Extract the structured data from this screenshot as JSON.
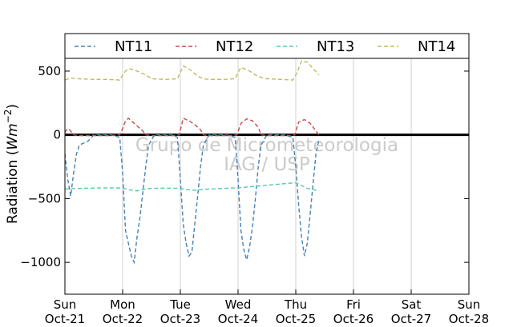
{
  "chart_data": {
    "type": "line",
    "ylabel_text": "Radiation (",
    "ylabel_unit": "Wm",
    "ylabel_exp": "−2",
    "ylabel_close": ")",
    "ylim": [
      -1250,
      600
    ],
    "yticks": [
      500,
      0,
      -500,
      -1000
    ],
    "ytick_labels": [
      "500",
      "0",
      "−500",
      "−1000"
    ],
    "xlim": [
      0,
      7
    ],
    "xticks": [
      0,
      1,
      2,
      3,
      4,
      5,
      6,
      7
    ],
    "xtick_labels_day": [
      "Sun",
      "Mon",
      "Tue",
      "Wed",
      "Thu",
      "Fri",
      "Sat",
      "Sun"
    ],
    "xtick_labels_date": [
      "Oct-21",
      "Oct-22",
      "Oct-23",
      "Oct-24",
      "Oct-25",
      "Oct-26",
      "Oct-27",
      "Oct-28"
    ],
    "grid": "vertical",
    "legend_position": "top",
    "watermark_line1": "Grupo de Micrometeorologia",
    "watermark_line2": "IAG / USP",
    "zero_line": 0,
    "series": [
      {
        "name": "NT11",
        "color": "#4682b4",
        "x": [
          0.0,
          0.05,
          0.1,
          0.15,
          0.2,
          0.25,
          0.35,
          0.4,
          0.5,
          0.65,
          0.8,
          0.95,
          1.0,
          1.05,
          1.1,
          1.15,
          1.2,
          1.25,
          1.3,
          1.35,
          1.4,
          1.45,
          1.55,
          1.7,
          1.85,
          1.95,
          2.0,
          2.05,
          2.1,
          2.15,
          2.2,
          2.25,
          2.3,
          2.35,
          2.4,
          2.5,
          2.65,
          2.8,
          2.95,
          3.0,
          3.05,
          3.1,
          3.15,
          3.2,
          3.25,
          3.3,
          3.35,
          3.4,
          3.5,
          3.65,
          3.8,
          3.95,
          4.0,
          4.05,
          4.1,
          4.15,
          4.2,
          4.25,
          4.3,
          4.35,
          4.4
        ],
        "y": [
          -150,
          -350,
          -480,
          -300,
          -150,
          -80,
          -60,
          -50,
          0,
          0,
          0,
          -20,
          -300,
          -750,
          -850,
          -950,
          -1000,
          -800,
          -650,
          -450,
          -250,
          -80,
          0,
          0,
          0,
          -20,
          -350,
          -700,
          -850,
          -950,
          -920,
          -700,
          -480,
          -250,
          -80,
          0,
          0,
          0,
          -20,
          -350,
          -750,
          -900,
          -980,
          -880,
          -720,
          -500,
          -250,
          -80,
          0,
          0,
          0,
          -20,
          -250,
          -550,
          -800,
          -950,
          -850,
          -620,
          -380,
          -150,
          -40
        ]
      },
      {
        "name": "NT12",
        "color": "#c44e52",
        "x": [
          0.0,
          0.05,
          0.1,
          0.15,
          0.25,
          0.4,
          0.6,
          0.8,
          0.95,
          1.0,
          1.05,
          1.1,
          1.2,
          1.3,
          1.35,
          1.4,
          1.5,
          1.7,
          1.9,
          1.98,
          2.05,
          2.15,
          2.25,
          2.35,
          2.4,
          2.5,
          2.7,
          2.9,
          2.98,
          3.05,
          3.15,
          3.25,
          3.35,
          3.4,
          3.5,
          3.7,
          3.9,
          3.98,
          4.05,
          4.15,
          4.25,
          4.35,
          4.4
        ],
        "y": [
          20,
          50,
          30,
          0,
          -5,
          -5,
          -5,
          -5,
          0,
          50,
          110,
          130,
          90,
          50,
          30,
          0,
          -5,
          -5,
          -5,
          0,
          130,
          110,
          80,
          40,
          0,
          -5,
          -5,
          -5,
          0,
          90,
          125,
          110,
          60,
          0,
          -5,
          -5,
          -5,
          0,
          100,
          120,
          90,
          30,
          0
        ]
      },
      {
        "name": "NT13",
        "color": "#55c8a8",
        "x": [
          0.0,
          0.25,
          0.5,
          0.75,
          1.0,
          1.1,
          1.25,
          1.4,
          1.5,
          1.75,
          2.0,
          2.1,
          2.25,
          2.4,
          2.5,
          2.75,
          3.0,
          3.25,
          3.5,
          3.75,
          4.0,
          4.2,
          4.4
        ],
        "y": [
          -425,
          -420,
          -418,
          -415,
          -418,
          -430,
          -440,
          -425,
          -420,
          -418,
          -420,
          -430,
          -435,
          -428,
          -425,
          -420,
          -415,
          -405,
          -395,
          -385,
          -375,
          -420,
          -440
        ]
      },
      {
        "name": "NT14",
        "color": "#c0bc5e",
        "x": [
          0.0,
          0.1,
          0.25,
          0.5,
          0.75,
          0.95,
          1.0,
          1.05,
          1.1,
          1.2,
          1.3,
          1.4,
          1.5,
          1.75,
          1.95,
          2.0,
          2.05,
          2.1,
          2.2,
          2.3,
          2.4,
          2.5,
          2.75,
          2.95,
          3.0,
          3.05,
          3.1,
          3.2,
          3.3,
          3.4,
          3.5,
          3.75,
          3.95,
          4.0,
          4.05,
          4.1,
          4.2,
          4.3,
          4.4
        ],
        "y": [
          430,
          445,
          440,
          435,
          435,
          430,
          470,
          500,
          520,
          510,
          490,
          470,
          440,
          435,
          440,
          490,
          540,
          530,
          500,
          460,
          440,
          435,
          435,
          440,
          490,
          530,
          520,
          500,
          470,
          450,
          440,
          435,
          430,
          470,
          520,
          580,
          570,
          520,
          470
        ]
      }
    ]
  }
}
